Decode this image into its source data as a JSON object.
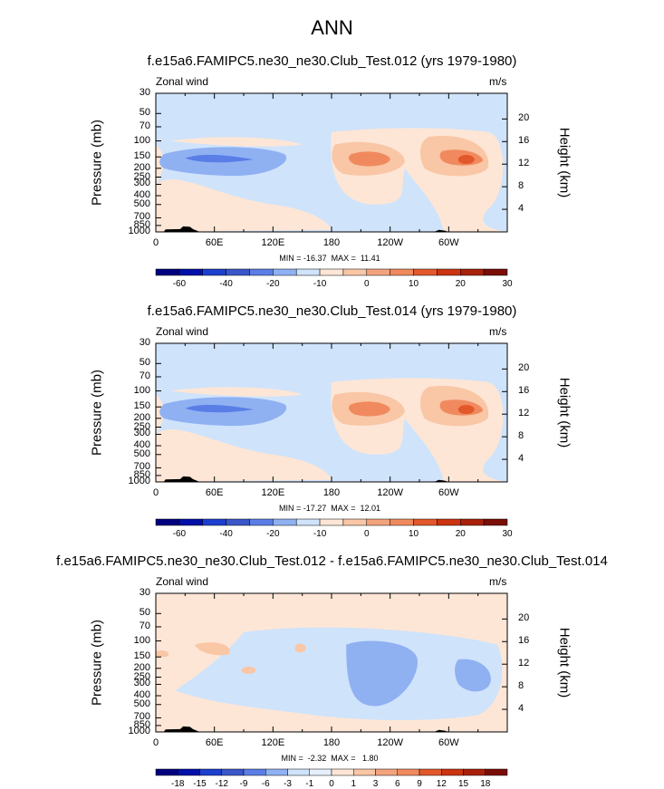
{
  "page_title": "ANN",
  "colors": {
    "neg4": "#3a56c9",
    "neg3": "#5a7ee6",
    "neg2": "#8fb1f2",
    "neg1": "#cfe3fb",
    "pos1": "#fde6d6",
    "pos2": "#f9c6a6",
    "pos3": "#f08a5e",
    "pos4": "#e2582a",
    "topo": "#000000"
  },
  "chart_data": [
    {
      "type": "contour",
      "title": "f.e15a6.FAMIPC5.ne30_ne30.Club_Test.012 (yrs 1979-1980)",
      "field_label": "Zonal wind",
      "units": "m/s",
      "ylabel": "Pressure (mb)",
      "ylabel_right": "Height (km)",
      "x_ticks": [
        "0",
        "60E",
        "120E",
        "180",
        "120W",
        "60W"
      ],
      "x_tick_values": [
        0,
        60,
        120,
        180,
        240,
        300
      ],
      "xlim": [
        0,
        360
      ],
      "y_ticks": [
        "30",
        "50",
        "70",
        "100",
        "150",
        "200",
        "250",
        "300",
        "400",
        "500",
        "700",
        "850",
        "1000"
      ],
      "y_tick_values": [
        30,
        50,
        70,
        100,
        150,
        200,
        250,
        300,
        400,
        500,
        700,
        850,
        1000
      ],
      "ylim": [
        1000,
        30
      ],
      "height_ticks": [
        "20",
        "16",
        "12",
        "8",
        "4"
      ],
      "height_tick_values": [
        20,
        16,
        12,
        8,
        4
      ],
      "min": -16.37,
      "max": 11.41,
      "minmax_text": "MIN = -16.37  MAX =  11.41",
      "colorbar": {
        "levels": [
          "-60",
          "-40",
          "-20",
          "-10",
          "0",
          "10",
          "20",
          "30"
        ],
        "colors": [
          "#00007f",
          "#0010a8",
          "#1d3fce",
          "#3a56c9",
          "#5a7ee6",
          "#8fb1f2",
          "#cfe3fb",
          "#fde6d6",
          "#f9c6a6",
          "#f3a37c",
          "#f08a5e",
          "#e2582a",
          "#cc3311",
          "#a8200a",
          "#7a0d06"
        ]
      },
      "features": [
        {
          "kind": "jet",
          "sign": "neg",
          "lon": [
            5,
            130
          ],
          "p": [
            110,
            250
          ],
          "peak": -16.37
        },
        {
          "kind": "jet",
          "sign": "pos",
          "lon": [
            185,
            250
          ],
          "p": [
            100,
            250
          ],
          "peak": 11.41
        },
        {
          "kind": "jet",
          "sign": "pos",
          "lon": [
            270,
            345
          ],
          "p": [
            100,
            250
          ],
          "peak": 11
        }
      ]
    },
    {
      "type": "contour",
      "title": "f.e15a6.FAMIPC5.ne30_ne30.Club_Test.014 (yrs 1979-1980)",
      "field_label": "Zonal wind",
      "units": "m/s",
      "ylabel": "Pressure (mb)",
      "ylabel_right": "Height (km)",
      "x_ticks": [
        "0",
        "60E",
        "120E",
        "180",
        "120W",
        "60W"
      ],
      "x_tick_values": [
        0,
        60,
        120,
        180,
        240,
        300
      ],
      "xlim": [
        0,
        360
      ],
      "y_ticks": [
        "30",
        "50",
        "70",
        "100",
        "150",
        "200",
        "250",
        "300",
        "400",
        "500",
        "700",
        "850",
        "1000"
      ],
      "y_tick_values": [
        30,
        50,
        70,
        100,
        150,
        200,
        250,
        300,
        400,
        500,
        700,
        850,
        1000
      ],
      "ylim": [
        1000,
        30
      ],
      "height_ticks": [
        "20",
        "16",
        "12",
        "8",
        "4"
      ],
      "height_tick_values": [
        20,
        16,
        12,
        8,
        4
      ],
      "min": -17.27,
      "max": 12.01,
      "minmax_text": "MIN = -17.27  MAX =  12.01",
      "colorbar": {
        "levels": [
          "-60",
          "-40",
          "-20",
          "-10",
          "0",
          "10",
          "20",
          "30"
        ],
        "colors": [
          "#00007f",
          "#0010a8",
          "#1d3fce",
          "#3a56c9",
          "#5a7ee6",
          "#8fb1f2",
          "#cfe3fb",
          "#fde6d6",
          "#f9c6a6",
          "#f3a37c",
          "#f08a5e",
          "#e2582a",
          "#cc3311",
          "#a8200a",
          "#7a0d06"
        ]
      },
      "features": [
        {
          "kind": "jet",
          "sign": "neg",
          "lon": [
            5,
            130
          ],
          "p": [
            110,
            250
          ],
          "peak": -17.27
        },
        {
          "kind": "jet",
          "sign": "pos",
          "lon": [
            185,
            250
          ],
          "p": [
            100,
            250
          ],
          "peak": 12.01
        },
        {
          "kind": "jet",
          "sign": "pos",
          "lon": [
            270,
            345
          ],
          "p": [
            100,
            250
          ],
          "peak": 12
        }
      ]
    },
    {
      "type": "contour",
      "title": "f.e15a6.FAMIPC5.ne30_ne30.Club_Test.012 - f.e15a6.FAMIPC5.ne30_ne30.Club_Test.014",
      "field_label": "Zonal wind",
      "units": "m/s",
      "ylabel": "Pressure (mb)",
      "ylabel_right": "Height (km)",
      "x_ticks": [
        "0",
        "60E",
        "120E",
        "180",
        "120W",
        "60W"
      ],
      "x_tick_values": [
        0,
        60,
        120,
        180,
        240,
        300
      ],
      "xlim": [
        0,
        360
      ],
      "y_ticks": [
        "30",
        "50",
        "70",
        "100",
        "150",
        "200",
        "250",
        "300",
        "400",
        "500",
        "700",
        "850",
        "1000"
      ],
      "y_tick_values": [
        30,
        50,
        70,
        100,
        150,
        200,
        250,
        300,
        400,
        500,
        700,
        850,
        1000
      ],
      "ylim": [
        1000,
        30
      ],
      "height_ticks": [
        "20",
        "16",
        "12",
        "8",
        "4"
      ],
      "height_tick_values": [
        20,
        16,
        12,
        8,
        4
      ],
      "min": -2.32,
      "max": 1.8,
      "minmax_text": "MIN =  -2.32  MAX =   1.80",
      "colorbar": {
        "levels": [
          "-18",
          "-15",
          "-12",
          "-9",
          "-6",
          "-3",
          "-1",
          "0",
          "1",
          "3",
          "6",
          "9",
          "12",
          "15",
          "18"
        ],
        "colors": [
          "#00007f",
          "#0010a8",
          "#1d3fce",
          "#3a56c9",
          "#5a7ee6",
          "#8fb1f2",
          "#cfe3fb",
          "#e6f0fd",
          "#fde6d6",
          "#f9c6a6",
          "#f3a37c",
          "#f08a5e",
          "#e2582a",
          "#cc3311",
          "#a8200a",
          "#7a0d06"
        ]
      },
      "features": [
        {
          "kind": "anom",
          "sign": "neg",
          "lon": [
            200,
            265
          ],
          "p": [
            100,
            500
          ],
          "peak": -2.32
        },
        {
          "kind": "anom",
          "sign": "neg",
          "lon": [
            300,
            345
          ],
          "p": [
            150,
            400
          ],
          "peak": -1.5
        },
        {
          "kind": "anom",
          "sign": "pos",
          "lon": [
            35,
            75
          ],
          "p": [
            100,
            150
          ],
          "peak": 1.8
        }
      ]
    }
  ]
}
